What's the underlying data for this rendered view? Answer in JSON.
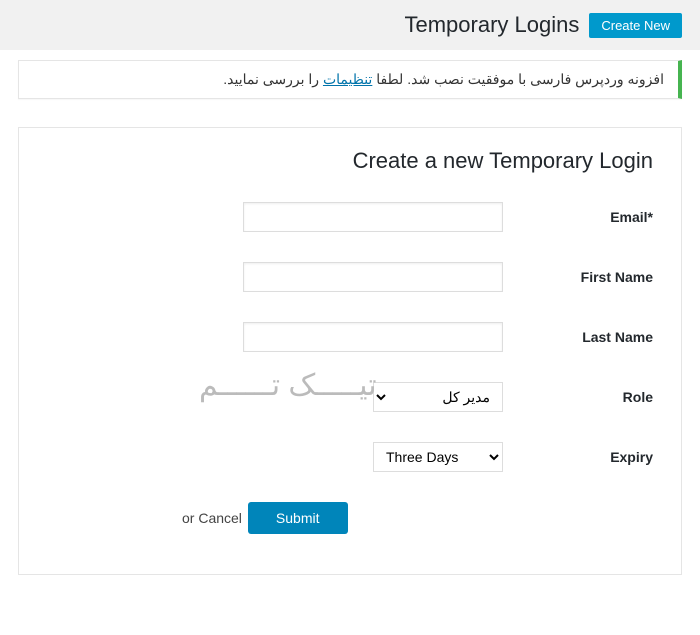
{
  "header": {
    "title": "Temporary Logins",
    "create_new_label": "Create New"
  },
  "notice": {
    "text_before": "افزونه وردپرس فارسی با موفقیت نصب شد. لطفا ",
    "link_text": "تنظیمات",
    "text_after": " را بررسی نمایید."
  },
  "form": {
    "title": "Create a new Temporary Login",
    "fields": {
      "email": {
        "label": "Email*",
        "value": ""
      },
      "first_name": {
        "label": "First Name",
        "value": ""
      },
      "last_name": {
        "label": "Last Name",
        "value": ""
      },
      "role": {
        "label": "Role",
        "selected": "مدیر کل"
      },
      "expiry": {
        "label": "Expiry",
        "selected": "Three Days"
      }
    },
    "actions": {
      "or_cancel": "or Cancel",
      "submit": "Submit"
    }
  },
  "watermark": "تیـــــک تــــــم",
  "colors": {
    "header_bg": "#f1f1f1",
    "create_btn_bg": "#0099cc",
    "notice_border": "#46b450",
    "link": "#0073aa",
    "submit_bg": "#0085ba",
    "border": "#e5e5e5",
    "watermark": "#bbbbbb"
  }
}
